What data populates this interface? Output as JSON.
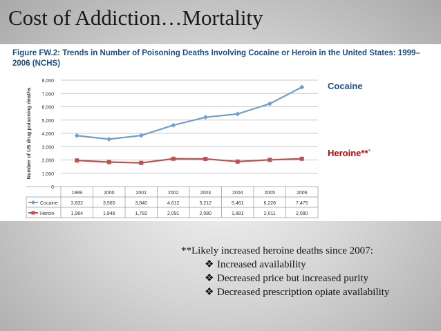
{
  "slide": {
    "title": "Cost of Addiction…Mortality",
    "figure_caption": "Figure FW.2: Trends in Number of Poisoning Deaths Involving Cocaine or Heroin in the United States: 1999–2006 (NCHS)",
    "label_cocaine": "Cocaine",
    "label_heroine": "Heroine**`",
    "note": {
      "heading": "**Likely increased heroine deaths since 2007:",
      "bullet_icon": "❖",
      "items": [
        "Increased availability",
        "Decreased price but increased purity",
        "Decreased prescription opiate availability"
      ]
    }
  },
  "colors": {
    "caption": "#1f4e8c",
    "cocaine": "#6f9fd0",
    "heroin": "#c0504d",
    "heroine_label": "#c00000"
  },
  "chart_data": {
    "type": "line",
    "title": "",
    "xlabel": "",
    "ylabel": "Number of US drug poisoning deaths",
    "categories": [
      "1999",
      "2000",
      "2001",
      "2002",
      "2003",
      "2004",
      "2005",
      "2006"
    ],
    "yticks": [
      "0",
      "1,000",
      "2,000",
      "3,000",
      "4,000",
      "5,000",
      "6,000",
      "7,000",
      "8,000"
    ],
    "ylim": [
      0,
      8000
    ],
    "grid": true,
    "series": [
      {
        "name": "Cocaine",
        "values": [
          3832,
          3565,
          3840,
          4612,
          5212,
          5461,
          6228,
          7475
        ],
        "labels": [
          "3,832",
          "3,565",
          "3,840",
          "4,612",
          "5,212",
          "5,461",
          "6,228",
          "7,475"
        ],
        "marker": "diamond"
      },
      {
        "name": "Heroin",
        "values": [
          1964,
          1846,
          1782,
          2091,
          2080,
          1881,
          2011,
          2090
        ],
        "labels": [
          "1,964",
          "1,846",
          "1,782",
          "2,091",
          "2,080",
          "1,881",
          "2,011",
          "2,090"
        ],
        "marker": "square"
      }
    ]
  }
}
